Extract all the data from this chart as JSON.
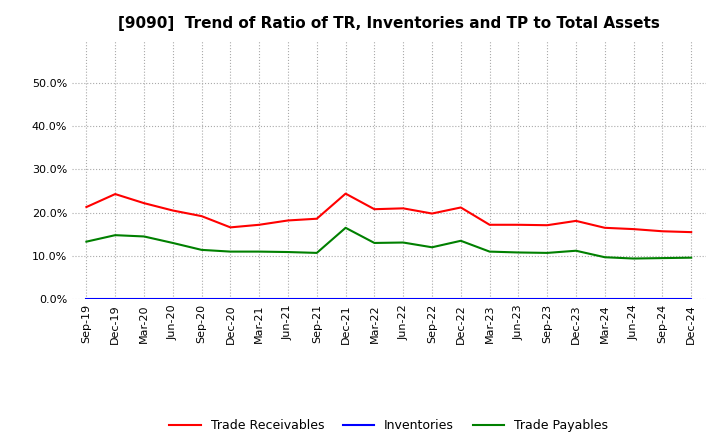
{
  "title": "[9090]  Trend of Ratio of TR, Inventories and TP to Total Assets",
  "x_labels": [
    "Sep-19",
    "Dec-19",
    "Mar-20",
    "Jun-20",
    "Sep-20",
    "Dec-20",
    "Mar-21",
    "Jun-21",
    "Sep-21",
    "Dec-21",
    "Mar-22",
    "Jun-22",
    "Sep-22",
    "Dec-22",
    "Mar-23",
    "Jun-23",
    "Sep-23",
    "Dec-23",
    "Mar-24",
    "Jun-24",
    "Sep-24",
    "Dec-24"
  ],
  "trade_receivables": [
    0.213,
    0.243,
    0.222,
    0.205,
    0.192,
    0.166,
    0.172,
    0.182,
    0.186,
    0.244,
    0.208,
    0.21,
    0.198,
    0.212,
    0.172,
    0.172,
    0.171,
    0.181,
    0.165,
    0.162,
    0.157,
    0.155
  ],
  "inventories": [
    0.001,
    0.001,
    0.001,
    0.001,
    0.001,
    0.001,
    0.001,
    0.001,
    0.001,
    0.001,
    0.001,
    0.001,
    0.001,
    0.001,
    0.001,
    0.001,
    0.001,
    0.001,
    0.001,
    0.001,
    0.001,
    0.001
  ],
  "trade_payables": [
    0.133,
    0.148,
    0.145,
    0.13,
    0.114,
    0.11,
    0.11,
    0.109,
    0.107,
    0.165,
    0.13,
    0.131,
    0.12,
    0.135,
    0.11,
    0.108,
    0.107,
    0.112,
    0.097,
    0.094,
    0.095,
    0.096
  ],
  "tr_color": "#ff0000",
  "inv_color": "#0000ff",
  "tp_color": "#008000",
  "ylim": [
    0.0,
    0.6
  ],
  "yticks": [
    0.0,
    0.1,
    0.2,
    0.3,
    0.4,
    0.5
  ],
  "background_color": "#ffffff",
  "grid_color": "#aaaaaa",
  "title_fontsize": 11,
  "tick_fontsize": 8,
  "legend_labels": [
    "Trade Receivables",
    "Inventories",
    "Trade Payables"
  ]
}
